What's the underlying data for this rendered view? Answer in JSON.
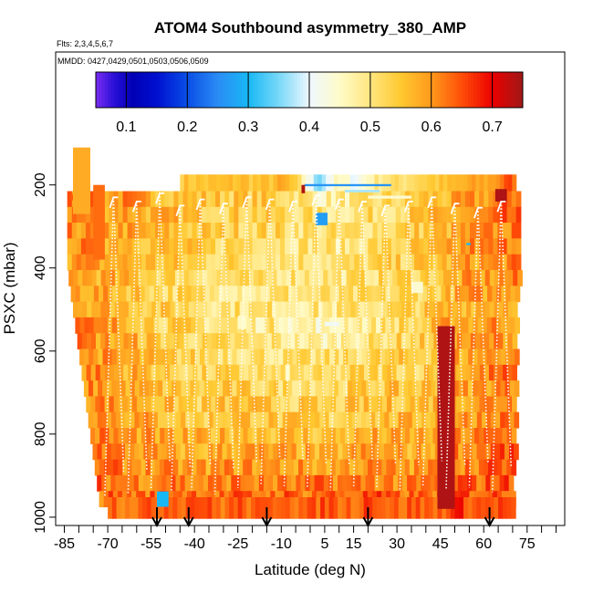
{
  "chart_data": {
    "type": "heatmap",
    "title": "ATOM4 Southbound asymmetry_380_AMP",
    "subtitle_flights": "Flts: 2,3,4,5,6,7",
    "subtitle_dates": "MMDD: 0427,0429,0501,0503,0506,0509",
    "xlabel": "Latitude (deg N)",
    "ylabel": "PSXC (mbar)",
    "xlim": [
      -88,
      88
    ],
    "ylim": [
      1020,
      -120
    ],
    "x_ticks": [
      -85,
      -70,
      -55,
      -40,
      -25,
      -10,
      5,
      15,
      30,
      45,
      60,
      75
    ],
    "x_tick_labels": [
      "-85",
      "-70",
      "-55",
      "-40",
      "-25",
      "-10",
      "5",
      "15",
      "30",
      "45",
      "60",
      "75"
    ],
    "x_minor_ticks": [
      -80,
      -75,
      -65,
      -60,
      -50,
      -45,
      -35,
      -30,
      -20,
      -15,
      -5,
      0,
      10,
      20,
      25,
      35,
      40,
      50,
      55,
      65,
      70,
      80,
      85
    ],
    "y_ticks": [
      200,
      400,
      600,
      800,
      1000
    ],
    "y_tick_labels": [
      "200",
      "400",
      "600",
      "800",
      "1000"
    ],
    "colorbar": {
      "range": [
        0.05,
        0.75
      ],
      "ticks": [
        0.1,
        0.2,
        0.3,
        0.4,
        0.5,
        0.6,
        0.7
      ],
      "tick_labels": [
        "0.1",
        "0.2",
        "0.3",
        "0.4",
        "0.5",
        "0.6",
        "0.7"
      ],
      "stops": [
        [
          0.05,
          "#7a2cf0"
        ],
        [
          0.08,
          "#2a10d8"
        ],
        [
          0.11,
          "#0000b4"
        ],
        [
          0.15,
          "#0010d0"
        ],
        [
          0.2,
          "#0a4ee6"
        ],
        [
          0.25,
          "#2b8cf5"
        ],
        [
          0.3,
          "#18b8f5"
        ],
        [
          0.35,
          "#78d8f8"
        ],
        [
          0.4,
          "#eef8ff"
        ],
        [
          0.45,
          "#fffbc8"
        ],
        [
          0.5,
          "#ffe680"
        ],
        [
          0.55,
          "#ffc830"
        ],
        [
          0.6,
          "#ff9a1c"
        ],
        [
          0.65,
          "#ff4e08"
        ],
        [
          0.7,
          "#ec0000"
        ],
        [
          0.75,
          "#a01818"
        ]
      ]
    },
    "cells": [
      [
        -75,
        975,
        0.62
      ],
      [
        -70,
        975,
        0.66
      ],
      [
        -60,
        975,
        0.64
      ],
      [
        -50,
        975,
        0.68
      ],
      [
        -40,
        975,
        0.7
      ],
      [
        -25,
        975,
        0.66
      ],
      [
        -10,
        975,
        0.69
      ],
      [
        5,
        975,
        0.67
      ],
      [
        20,
        975,
        0.7
      ],
      [
        35,
        975,
        0.66
      ],
      [
        50,
        975,
        0.69
      ],
      [
        65,
        975,
        0.66
      ],
      [
        -73,
        925,
        0.64
      ],
      [
        -60,
        925,
        0.62
      ],
      [
        -50,
        925,
        0.66
      ],
      [
        -40,
        925,
        0.6
      ],
      [
        -25,
        925,
        0.64
      ],
      [
        -10,
        925,
        0.61
      ],
      [
        5,
        925,
        0.65
      ],
      [
        20,
        925,
        0.63
      ],
      [
        35,
        925,
        0.6
      ],
      [
        50,
        925,
        0.66
      ],
      [
        65,
        925,
        0.66
      ],
      [
        -75,
        850,
        0.66
      ],
      [
        -60,
        850,
        0.6
      ],
      [
        -50,
        850,
        0.56
      ],
      [
        -40,
        850,
        0.55
      ],
      [
        -25,
        850,
        0.6
      ],
      [
        -10,
        850,
        0.58
      ],
      [
        5,
        850,
        0.54
      ],
      [
        20,
        850,
        0.6
      ],
      [
        35,
        850,
        0.56
      ],
      [
        50,
        850,
        0.62
      ],
      [
        65,
        850,
        0.66
      ],
      [
        -75,
        750,
        0.64
      ],
      [
        -60,
        750,
        0.6
      ],
      [
        -50,
        750,
        0.55
      ],
      [
        -40,
        750,
        0.5
      ],
      [
        -25,
        750,
        0.56
      ],
      [
        -10,
        750,
        0.52
      ],
      [
        5,
        750,
        0.5
      ],
      [
        20,
        750,
        0.54
      ],
      [
        35,
        750,
        0.55
      ],
      [
        50,
        750,
        0.6
      ],
      [
        65,
        750,
        0.64
      ],
      [
        -75,
        650,
        0.62
      ],
      [
        -60,
        650,
        0.58
      ],
      [
        -50,
        650,
        0.52
      ],
      [
        -40,
        650,
        0.5
      ],
      [
        -25,
        650,
        0.5
      ],
      [
        -10,
        650,
        0.47
      ],
      [
        5,
        650,
        0.48
      ],
      [
        20,
        650,
        0.52
      ],
      [
        35,
        650,
        0.52
      ],
      [
        50,
        650,
        0.58
      ],
      [
        65,
        650,
        0.64
      ],
      [
        -80,
        550,
        0.64
      ],
      [
        -65,
        550,
        0.6
      ],
      [
        -50,
        550,
        0.52
      ],
      [
        -35,
        550,
        0.48
      ],
      [
        -20,
        550,
        0.46
      ],
      [
        -5,
        550,
        0.44
      ],
      [
        5,
        550,
        0.4
      ],
      [
        20,
        550,
        0.46
      ],
      [
        35,
        550,
        0.5
      ],
      [
        50,
        550,
        0.62
      ],
      [
        65,
        550,
        0.62
      ],
      [
        -80,
        450,
        0.6
      ],
      [
        -65,
        450,
        0.56
      ],
      [
        -50,
        450,
        0.5
      ],
      [
        -35,
        450,
        0.48
      ],
      [
        -20,
        450,
        0.46
      ],
      [
        -5,
        450,
        0.5
      ],
      [
        10,
        450,
        0.48
      ],
      [
        25,
        450,
        0.5
      ],
      [
        40,
        450,
        0.52
      ],
      [
        55,
        450,
        0.6
      ],
      [
        68,
        450,
        0.62
      ],
      [
        -82,
        350,
        0.62
      ],
      [
        -65,
        350,
        0.6
      ],
      [
        -50,
        350,
        0.56
      ],
      [
        -35,
        350,
        0.52
      ],
      [
        -20,
        350,
        0.54
      ],
      [
        -5,
        350,
        0.5
      ],
      [
        10,
        350,
        0.48
      ],
      [
        25,
        350,
        0.52
      ],
      [
        40,
        350,
        0.54
      ],
      [
        55,
        350,
        0.62
      ],
      [
        68,
        350,
        0.64
      ],
      [
        -82,
        250,
        0.64
      ],
      [
        -65,
        250,
        0.62
      ],
      [
        -50,
        250,
        0.58
      ],
      [
        -35,
        250,
        0.55
      ],
      [
        -20,
        250,
        0.54
      ],
      [
        -5,
        250,
        0.52
      ],
      [
        10,
        250,
        0.5
      ],
      [
        25,
        250,
        0.52
      ],
      [
        40,
        250,
        0.56
      ],
      [
        55,
        250,
        0.6
      ],
      [
        68,
        250,
        0.66
      ],
      [
        -45,
        190,
        0.55
      ],
      [
        -25,
        190,
        0.57
      ],
      [
        -10,
        190,
        0.6
      ],
      [
        2,
        190,
        0.3
      ],
      [
        15,
        190,
        0.38
      ],
      [
        30,
        190,
        0.5
      ],
      [
        45,
        190,
        0.54
      ],
      [
        60,
        190,
        0.58
      ],
      [
        68,
        190,
        0.66
      ]
    ],
    "patches": [
      [
        -83,
        237,
        2,
        223,
        0.64
      ],
      [
        -82,
        270,
        6,
        110,
        0.58
      ],
      [
        -75,
        380,
        4,
        200,
        0.63
      ],
      [
        -2,
        198,
        30,
        203,
        0.26
      ],
      [
        12,
        212,
        12,
        218,
        0.37
      ],
      [
        20,
        226,
        15,
        233,
        0.44
      ],
      [
        2,
        267,
        4,
        297,
        0.27
      ],
      [
        35,
        433,
        4,
        460,
        0.44
      ],
      [
        -25,
        515,
        3,
        547,
        0.45
      ],
      [
        5,
        540,
        5,
        530,
        0.41
      ],
      [
        54,
        340,
        1.5,
        345,
        0.3
      ],
      [
        -53,
        938,
        4,
        975,
        0.3
      ],
      [
        -3,
        200,
        1.2,
        220,
        0.74
      ],
      [
        64,
        210,
        4,
        240,
        0.74
      ],
      [
        44,
        540,
        6,
        980,
        0.74
      ]
    ],
    "flight_tracks": [
      [
        -68,
        230,
        950
      ],
      [
        -60,
        240,
        945
      ],
      [
        -52,
        220,
        930
      ],
      [
        -45,
        250,
        940
      ],
      [
        -38,
        235,
        935
      ],
      [
        -30,
        245,
        945
      ],
      [
        -22,
        230,
        930
      ],
      [
        -14,
        235,
        920
      ],
      [
        -6,
        240,
        925
      ],
      [
        2,
        225,
        930
      ],
      [
        10,
        235,
        935
      ],
      [
        18,
        240,
        925
      ],
      [
        26,
        250,
        930
      ],
      [
        34,
        240,
        935
      ],
      [
        42,
        230,
        925
      ],
      [
        50,
        245,
        935
      ],
      [
        58,
        255,
        930
      ],
      [
        66,
        240,
        940
      ]
    ],
    "arrows": [
      -53,
      -42,
      -15,
      20,
      62
    ]
  }
}
